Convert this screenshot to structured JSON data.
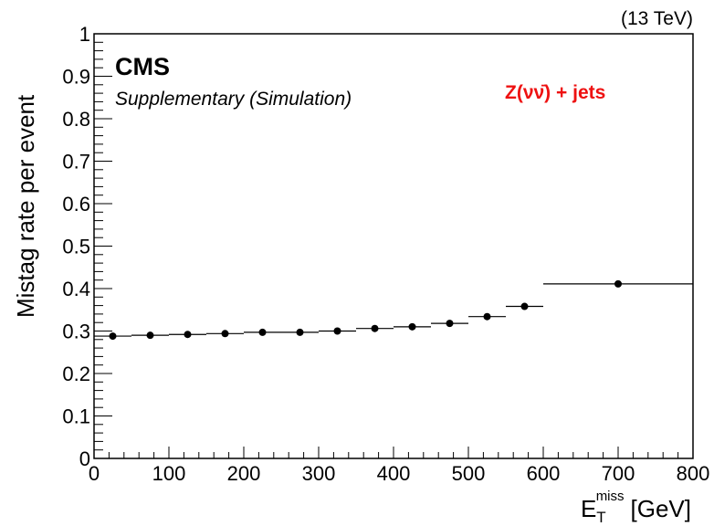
{
  "chart_data": {
    "type": "scatter",
    "energy_label": "(13 TeV)",
    "cms_label": "CMS",
    "cms_sublabel": "Supplementary (Simulation)",
    "annotation": "Z(νν̄) + jets",
    "annotation_color": "#ee1111",
    "ylabel": "Mistag rate per event",
    "xlabel": {
      "main": "E",
      "sub": "T",
      "sup": "miss",
      "unit": "[GeV]"
    },
    "xlim": [
      0,
      800
    ],
    "ylim": [
      0,
      1
    ],
    "x_ticks": [
      0,
      100,
      200,
      300,
      400,
      500,
      600,
      700,
      800
    ],
    "x_tick_labels": [
      "0",
      "100",
      "200",
      "300",
      "400",
      "500",
      "600",
      "700",
      "800"
    ],
    "y_ticks": [
      0,
      0.1,
      0.2,
      0.3,
      0.4,
      0.5,
      0.6,
      0.7,
      0.8,
      0.9,
      1
    ],
    "y_tick_labels": [
      "0",
      "0.1",
      "0.2",
      "0.3",
      "0.4",
      "0.5",
      "0.6",
      "0.7",
      "0.8",
      "0.9",
      "1"
    ],
    "grid": false,
    "points": [
      {
        "x": 25,
        "xlow": 0,
        "xhigh": 50,
        "y": 0.288
      },
      {
        "x": 75,
        "xlow": 50,
        "xhigh": 100,
        "y": 0.29
      },
      {
        "x": 125,
        "xlow": 100,
        "xhigh": 150,
        "y": 0.292
      },
      {
        "x": 175,
        "xlow": 150,
        "xhigh": 200,
        "y": 0.294
      },
      {
        "x": 225,
        "xlow": 200,
        "xhigh": 250,
        "y": 0.297
      },
      {
        "x": 275,
        "xlow": 250,
        "xhigh": 300,
        "y": 0.297
      },
      {
        "x": 325,
        "xlow": 300,
        "xhigh": 350,
        "y": 0.3
      },
      {
        "x": 375,
        "xlow": 350,
        "xhigh": 400,
        "y": 0.306
      },
      {
        "x": 425,
        "xlow": 400,
        "xhigh": 450,
        "y": 0.31
      },
      {
        "x": 475,
        "xlow": 450,
        "xhigh": 500,
        "y": 0.318
      },
      {
        "x": 525,
        "xlow": 500,
        "xhigh": 550,
        "y": 0.334
      },
      {
        "x": 575,
        "xlow": 550,
        "xhigh": 600,
        "y": 0.358
      },
      {
        "x": 700,
        "xlow": 600,
        "xhigh": 800,
        "y": 0.411
      }
    ]
  }
}
